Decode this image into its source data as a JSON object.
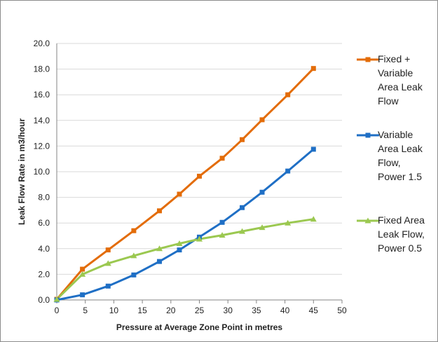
{
  "chart_data": {
    "type": "line",
    "title": "",
    "xlabel": "Pressure at Average Zone Point in metres",
    "ylabel": "Leak Flow Rate in m3/hour",
    "xlim": [
      0,
      50
    ],
    "ylim": [
      0,
      20
    ],
    "x_ticks": [
      "0",
      "5",
      "10",
      "15",
      "20",
      "25",
      "30",
      "35",
      "40",
      "45",
      "50"
    ],
    "y_ticks": [
      "0.0",
      "2.0",
      "4.0",
      "6.0",
      "8.0",
      "10.0",
      "12.0",
      "14.0",
      "16.0",
      "18.0",
      "20.0"
    ],
    "grid": "horizontal",
    "legend_position": "right",
    "x": [
      0,
      4.5,
      9,
      13.5,
      18,
      21.5,
      25,
      29,
      32.5,
      36,
      40.5,
      45
    ],
    "series": [
      {
        "name": "Fixed + Variable Area Leak Flow",
        "legend_lines": [
          "Fixed +",
          "Variable",
          "Area Leak",
          "Flow"
        ],
        "color": "#e36c09",
        "marker": "square",
        "values": [
          0.05,
          2.4,
          3.9,
          5.4,
          6.95,
          8.25,
          9.65,
          11.05,
          12.5,
          14.05,
          16.0,
          18.05
        ]
      },
      {
        "name": "Variable Area Leak Flow, Power 1.5",
        "legend_lines": [
          "Variable",
          "Area Leak",
          "Flow,",
          "Power 1.5"
        ],
        "color": "#1f6fc5",
        "marker": "square",
        "values": [
          0.0,
          0.4,
          1.08,
          1.95,
          3.0,
          3.9,
          4.9,
          6.05,
          7.2,
          8.4,
          10.05,
          11.75
        ]
      },
      {
        "name": "Fixed Area Leak Flow, Power 0.5",
        "legend_lines": [
          "Fixed Area",
          "Leak Flow,",
          "Power 0.5"
        ],
        "color": "#9bc850",
        "marker": "triangle",
        "values": [
          0.05,
          2.0,
          2.85,
          3.45,
          4.0,
          4.4,
          4.75,
          5.05,
          5.35,
          5.65,
          6.0,
          6.3
        ]
      }
    ]
  }
}
